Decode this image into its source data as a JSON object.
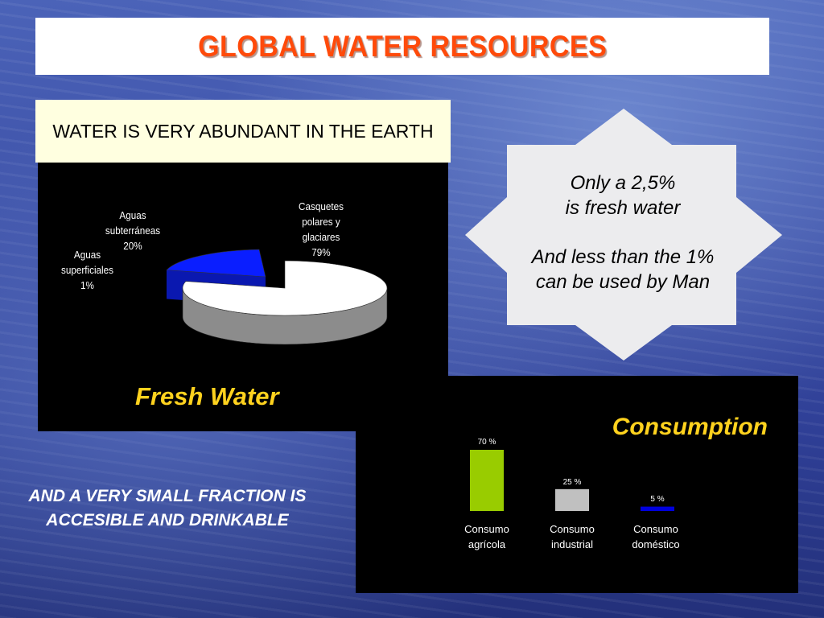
{
  "slide": {
    "title": "GLOBAL WATER RESOURCES",
    "abundant_heading": "WATER IS VERY ABUNDANT IN THE EARTH",
    "star_text": {
      "line1": "Only a 2,5%",
      "line2": "is fresh water",
      "line3": "And less than the 1%",
      "line4": "can be used by Man"
    },
    "bottom_text": "AND A VERY SMALL FRACTION IS  ACCESIBLE AND DRINKABLE",
    "colors": {
      "title": "#ff4a0a",
      "chart_titles": "#ffd21e",
      "casquetes": "#ffffff",
      "subterraneas": "#0a1eff",
      "superficiales": "#1a8a1a",
      "agricola": "#99cc00",
      "industrial": "#c0c0c0",
      "domestico": "#0000dd"
    }
  },
  "chart_data": [
    {
      "type": "pie",
      "title": "Fresh Water",
      "slices": [
        {
          "label": [
            "Casquetes",
            "polares y",
            "glaciares"
          ],
          "value_label": "79%",
          "value": 79
        },
        {
          "label": [
            "Aguas",
            "subterráneas"
          ],
          "value_label": "20%",
          "value": 20
        },
        {
          "label": [
            "Aguas",
            "superficiales"
          ],
          "value_label": "1%",
          "value": 1
        }
      ]
    },
    {
      "type": "bar",
      "title": "Consumption",
      "categories": [
        [
          "Consumo",
          "agrícola"
        ],
        [
          "Consumo",
          "industrial"
        ],
        [
          "Consumo",
          "doméstico"
        ]
      ],
      "values": [
        70,
        25,
        5
      ],
      "value_labels": [
        "70 %",
        "25 %",
        "5 %"
      ],
      "ylim": [
        0,
        70
      ]
    }
  ]
}
